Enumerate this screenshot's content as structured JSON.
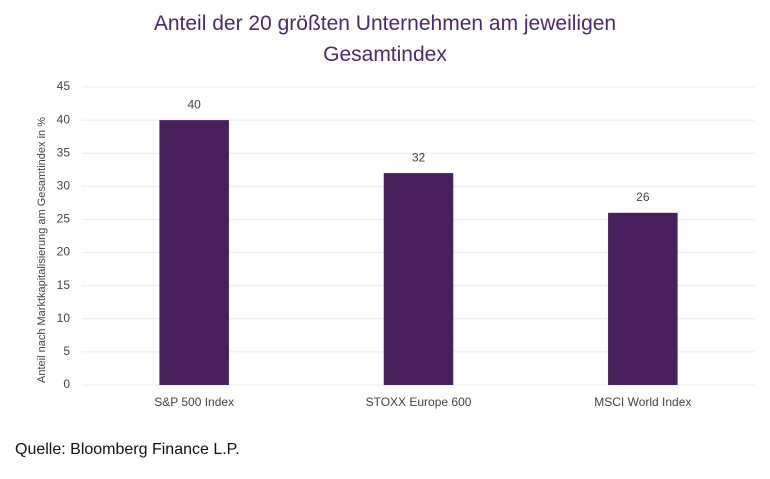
{
  "chart_data": {
    "type": "bar",
    "title": "Anteil der 20 größten Unternehmen am jeweiligen Gesamtindex",
    "y_label": "Anteil nach Marktkapitalisierung am Gesamtindex in %",
    "source": "Quelle: Bloomberg Finance L.P.",
    "categories": [
      "S&P 500 Index",
      "STOXX Europe 600",
      "MSCI World Index"
    ],
    "values": [
      40,
      32,
      26
    ],
    "color": "#4a1f5e",
    "ylim": [
      0,
      45
    ],
    "yticks": [
      0,
      5,
      10,
      15,
      20,
      25,
      30,
      35,
      40,
      45
    ],
    "grid": true
  }
}
